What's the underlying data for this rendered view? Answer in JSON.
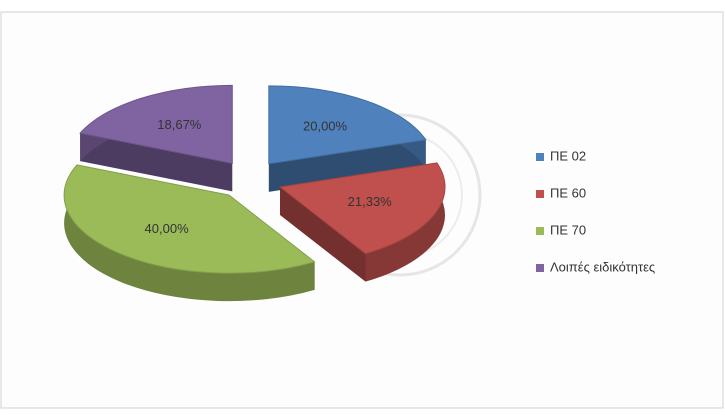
{
  "chart_data": {
    "type": "pie",
    "categories": [
      "ΠΕ 02",
      "ΠΕ 60",
      "ΠΕ 70",
      "Λοιπές ειδικότητες"
    ],
    "values": [
      20,
      21.33,
      40,
      18.67
    ],
    "value_labels": [
      "20,00%",
      "21,33%",
      "40,00%",
      "18,67%"
    ],
    "colors": [
      "#4f81bd",
      "#c0504d",
      "#9bbb59",
      "#8064a2"
    ],
    "legend": "right"
  }
}
